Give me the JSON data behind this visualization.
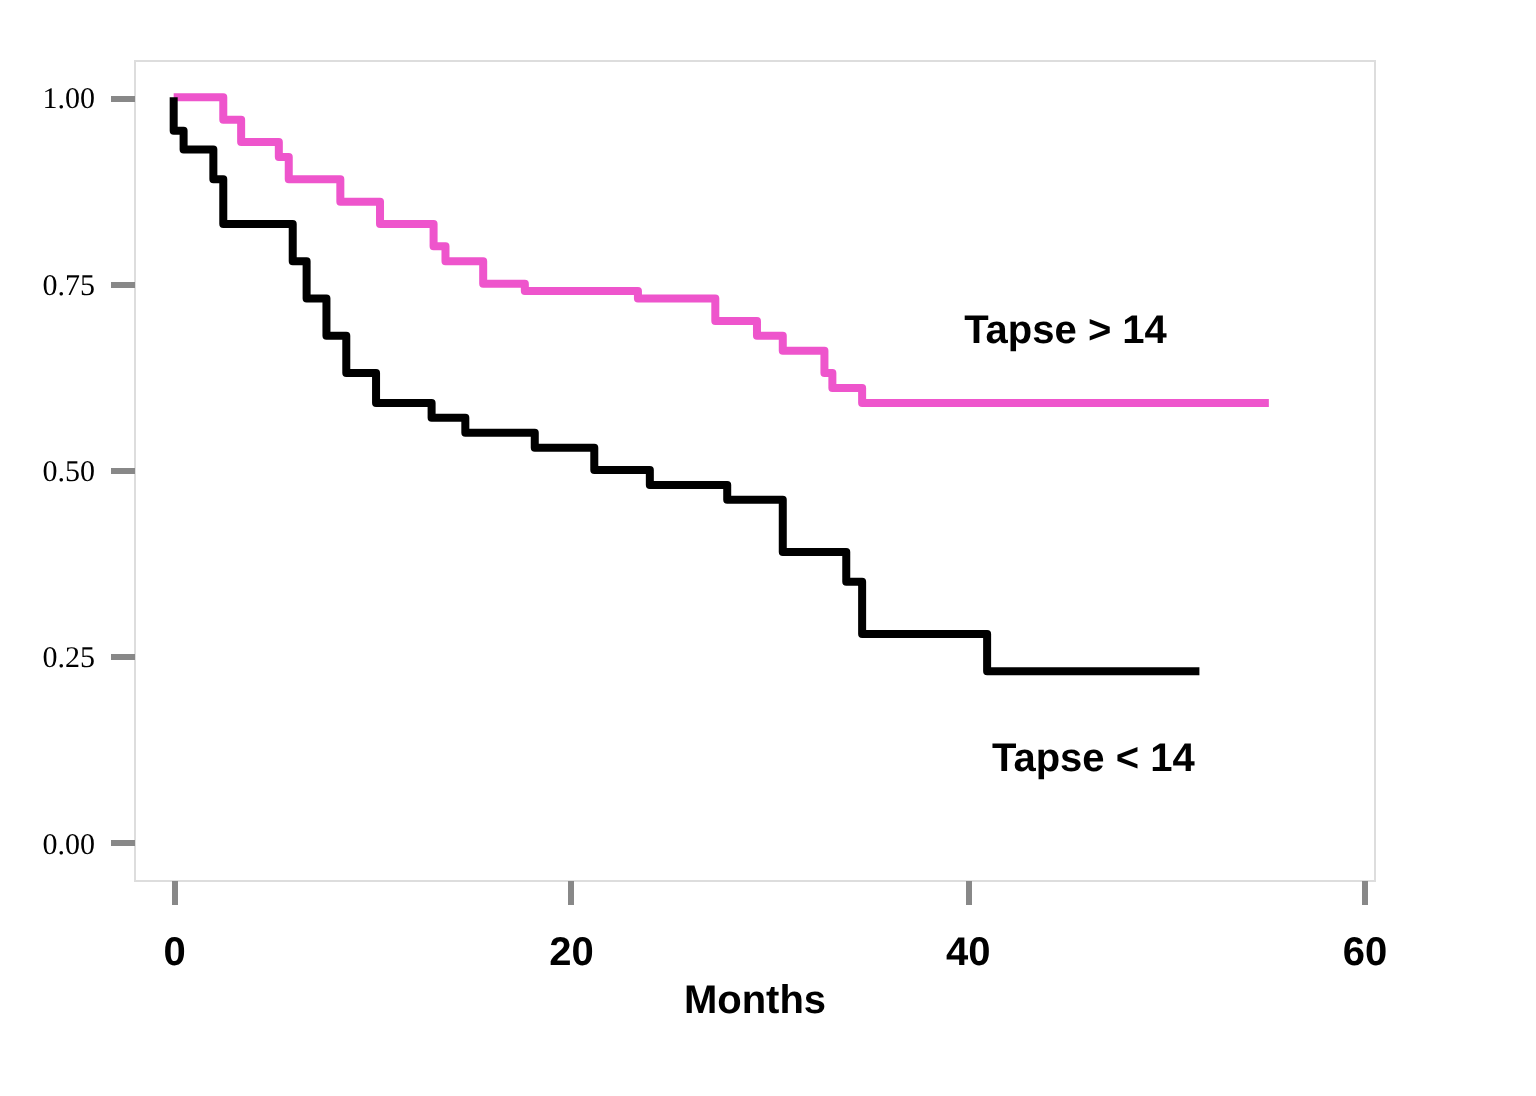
{
  "chart_data": {
    "type": "step",
    "xlabel": "Months",
    "xlim": [
      -2,
      60.5
    ],
    "xticks": [
      0,
      20,
      40,
      60
    ],
    "ylim": [
      -0.05,
      1.05
    ],
    "yticks": [
      {
        "value": 0,
        "label": "0.00"
      },
      {
        "value": 0.25,
        "label": "0.25"
      },
      {
        "value": 0.5,
        "label": "0.50"
      },
      {
        "value": 0.75,
        "label": "0.75"
      },
      {
        "value": 1,
        "label": "1.00"
      }
    ],
    "grid": false,
    "legend": false,
    "line_style": "solid",
    "marker": "none",
    "series": [
      {
        "name": "Tapse > 14",
        "color": "#ee55cc",
        "x": [
          0,
          2.5,
          3.4,
          5.3,
          5.8,
          8.4,
          10.4,
          13.1,
          13.7,
          15.6,
          17.7,
          23.4,
          27.3,
          29.4,
          30.7,
          32.8,
          33.2,
          34.7,
          55.2
        ],
        "values": [
          1.0,
          0.97,
          0.94,
          0.92,
          0.89,
          0.86,
          0.83,
          0.8,
          0.78,
          0.75,
          0.74,
          0.73,
          0.7,
          0.68,
          0.66,
          0.63,
          0.61,
          0.59,
          0.59
        ]
      },
      {
        "name": "Tapse < 14",
        "color": "#000000",
        "x": [
          0,
          0,
          0.5,
          2.0,
          2.5,
          6.0,
          6.7,
          7.7,
          8.7,
          10.2,
          13.0,
          14.7,
          18.2,
          21.2,
          24.0,
          27.9,
          30.7,
          33.9,
          34.7,
          41.0,
          51.7
        ],
        "values": [
          1.0,
          0.955,
          0.93,
          0.89,
          0.83,
          0.78,
          0.73,
          0.68,
          0.63,
          0.59,
          0.57,
          0.55,
          0.53,
          0.5,
          0.48,
          0.46,
          0.39,
          0.35,
          0.28,
          0.23,
          0.23
        ]
      }
    ]
  }
}
